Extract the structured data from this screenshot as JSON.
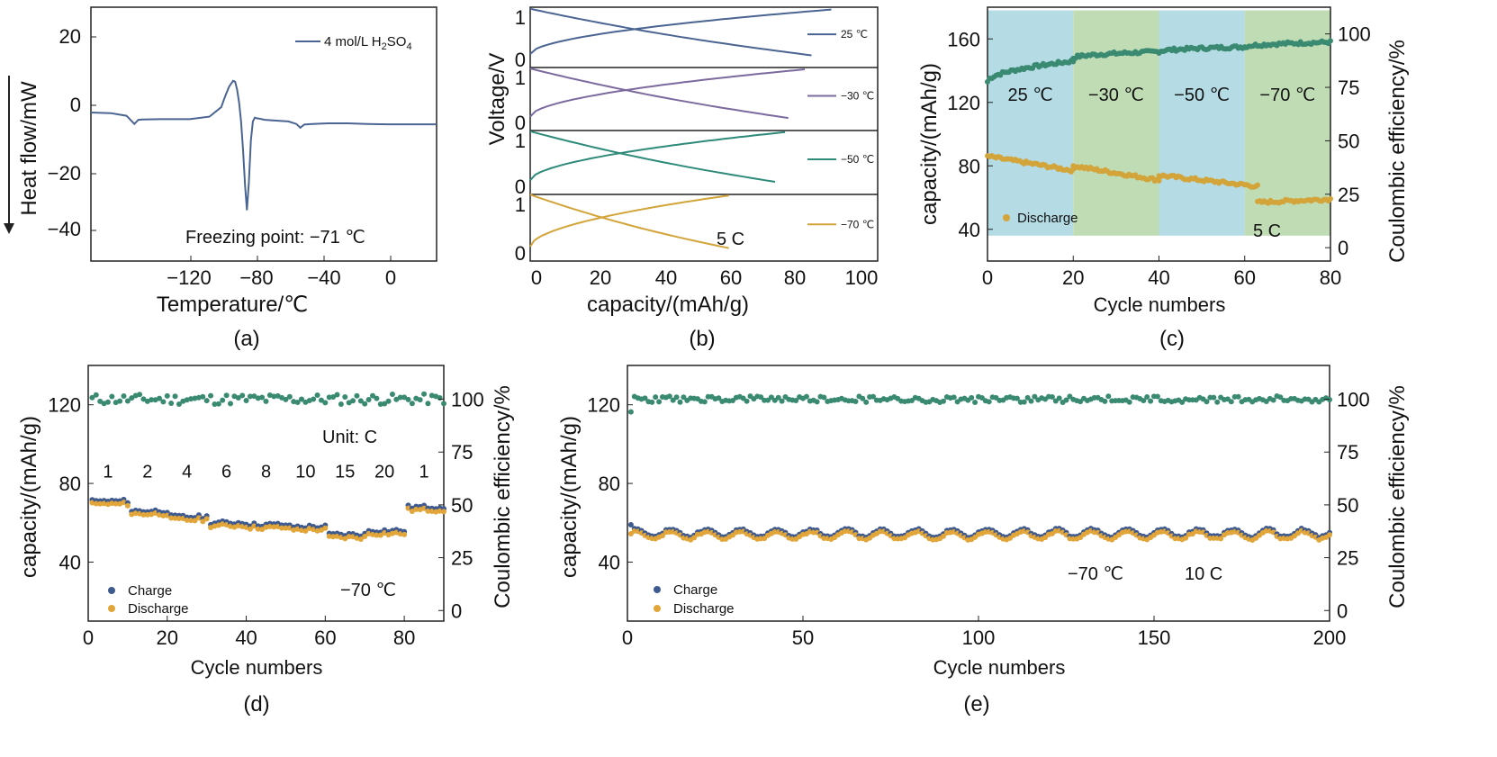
{
  "colors": {
    "blue": "#4a6592",
    "purple": "#7c6a9e",
    "teal": "#2e8a79",
    "gold": "#d3a43a",
    "green_dots": "#3a8a72",
    "dark_blue_dots": "#3f5a8e",
    "orange_dots": "#e1a539",
    "region_blue": "#a8d5e0",
    "region_green": "#b5d6a7"
  },
  "chart_data": [
    {
      "id": "a",
      "type": "line",
      "label": "(a)",
      "xlabel": "Temperature/℃",
      "ylabel": "Heat flow/mW",
      "xlim": [
        -150,
        25
      ],
      "ylim": [
        -50,
        30
      ],
      "xticks": [
        "−120",
        "−80",
        "−40",
        "0"
      ],
      "yticks": [
        "20",
        "0",
        "−20",
        "−40"
      ],
      "legend": "4 mol/L H",
      "legend_sub1": "2",
      "legend_mid": "SO",
      "legend_sub2": "4",
      "annotation": "Freezing point: −71 ℃",
      "series": [
        {
          "name": "4 mol/L H2SO4",
          "x": [
            -150,
            -140,
            -132,
            -128,
            -126,
            -124,
            -115,
            -100,
            -90,
            -84,
            -82,
            -80,
            -78,
            -77,
            -76,
            -75,
            -74,
            -73,
            -72,
            -71,
            -70,
            -69,
            -68,
            -67,
            -66,
            -64,
            -62,
            -58,
            -50,
            -46,
            -44,
            -42,
            -38,
            -30,
            -20,
            -10,
            0,
            10,
            25
          ],
          "y": [
            -3.2,
            -3.4,
            -4.2,
            -6.8,
            -5.5,
            -5.4,
            -5.3,
            -5.3,
            -4.5,
            -1.5,
            2,
            5,
            6.8,
            6.5,
            4,
            0,
            -6,
            -15,
            -26,
            -34,
            -25,
            -12,
            -6,
            -4.8,
            -5,
            -5.2,
            -5.5,
            -5.7,
            -6,
            -6.8,
            -8,
            -7,
            -6.8,
            -6.6,
            -6.6,
            -6.8,
            -6.9,
            -6.9,
            -6.9
          ]
        }
      ]
    },
    {
      "id": "b",
      "type": "line",
      "label": "(b)",
      "xlabel": "capacity/(mAh/g)",
      "ylabel": "Voltage/V",
      "xlim": [
        0,
        105
      ],
      "xticks": [
        "0",
        "20",
        "40",
        "60",
        "80",
        "100"
      ],
      "panel_yticks": [
        "0",
        "1"
      ],
      "rate_note": "5 C",
      "panels": [
        {
          "name": "25 ℃",
          "max_cap": 91,
          "dis_cap": 85
        },
        {
          "name": "−30 ℃",
          "max_cap": 83,
          "dis_cap": 78
        },
        {
          "name": "−50 ℃",
          "max_cap": 77,
          "dis_cap": 74
        },
        {
          "name": "−70 ℃",
          "max_cap": 60,
          "dis_cap": 60
        }
      ]
    },
    {
      "id": "c",
      "type": "scatter",
      "label": "(c)",
      "xlabel": "Cycle numbers",
      "ylabel": "capacity/(mAh/g)",
      "y2label": "Coulombic efficiency/%",
      "xlim": [
        0,
        80
      ],
      "ylim": [
        20,
        180
      ],
      "y2lim": [
        -6.25,
        112.5
      ],
      "xticks": [
        "0",
        "20",
        "40",
        "60",
        "80"
      ],
      "yticks": [
        "40",
        "80",
        "120",
        "160"
      ],
      "y2ticks": [
        "0",
        "25",
        "50",
        "75",
        "100"
      ],
      "regions": [
        {
          "name": "25 ℃",
          "from": 0,
          "to": 20
        },
        {
          "name": "−30 ℃",
          "from": 20,
          "to": 40
        },
        {
          "name": "−50 ℃",
          "from": 40,
          "to": 60
        },
        {
          "name": "−70 ℃",
          "from": 60,
          "to": 80
        }
      ],
      "legend": "Discharge",
      "rate_note": "5 C",
      "ce_segments": [
        [
          0,
          20,
          133,
          146
        ],
        [
          20,
          40,
          148,
          152
        ],
        [
          40,
          60,
          152,
          155
        ],
        [
          60,
          80,
          155,
          158
        ]
      ],
      "discharge_segments": [
        [
          0,
          20,
          86,
          77
        ],
        [
          20,
          40,
          80,
          71
        ],
        [
          40,
          60,
          74,
          68
        ],
        [
          60,
          63,
          68,
          67
        ],
        [
          63,
          80,
          57,
          59
        ]
      ]
    },
    {
      "id": "d",
      "type": "scatter",
      "label": "(d)",
      "xlabel": "Cycle numbers",
      "ylabel": "capacity/(mAh/g)",
      "y2label": "Coulombic efficiency/%",
      "xlim": [
        0,
        90
      ],
      "ylim": [
        10,
        140
      ],
      "y2lim": [
        -5,
        116
      ],
      "xticks": [
        "0",
        "20",
        "40",
        "60",
        "80"
      ],
      "yticks": [
        "40",
        "80",
        "120"
      ],
      "y2ticks": [
        "0",
        "25",
        "50",
        "75",
        "100"
      ],
      "unit_note": "Unit: C",
      "temp_note": "−70 ℃",
      "rates": [
        {
          "label": "1",
          "from": 0,
          "to": 10,
          "value": 70
        },
        {
          "label": "2",
          "from": 10,
          "to": 20,
          "value": 65
        },
        {
          "label": "4",
          "from": 20,
          "to": 30,
          "value": 62
        },
        {
          "label": "6",
          "from": 30,
          "to": 40,
          "value": 59
        },
        {
          "label": "8",
          "from": 40,
          "to": 50,
          "value": 58
        },
        {
          "label": "10",
          "from": 50,
          "to": 60,
          "value": 57
        },
        {
          "label": "15",
          "from": 60,
          "to": 70,
          "value": 53
        },
        {
          "label": "20",
          "from": 70,
          "to": 80,
          "value": 55
        },
        {
          "label": "1",
          "from": 80,
          "to": 90,
          "value": 67
        }
      ],
      "ce_mean": 100,
      "series": [
        {
          "name": "Charge"
        },
        {
          "name": "Discharge"
        }
      ]
    },
    {
      "id": "e",
      "type": "scatter",
      "label": "(e)",
      "xlabel": "Cycle numbers",
      "ylabel": "capacity/(mAh/g)",
      "y2label": "Coulombic efficiency/%",
      "xlim": [
        0,
        200
      ],
      "ylim": [
        10,
        140
      ],
      "y2lim": [
        -5,
        116
      ],
      "xticks": [
        "0",
        "50",
        "100",
        "150",
        "200"
      ],
      "yticks": [
        "40",
        "80",
        "120"
      ],
      "y2ticks": [
        "0",
        "25",
        "50",
        "75",
        "100"
      ],
      "temp_note": "−70 ℃",
      "rate_note": "10 C",
      "capacity_mean": 54,
      "ce_mean": 100,
      "series": [
        {
          "name": "Charge"
        },
        {
          "name": "Discharge"
        }
      ]
    }
  ]
}
